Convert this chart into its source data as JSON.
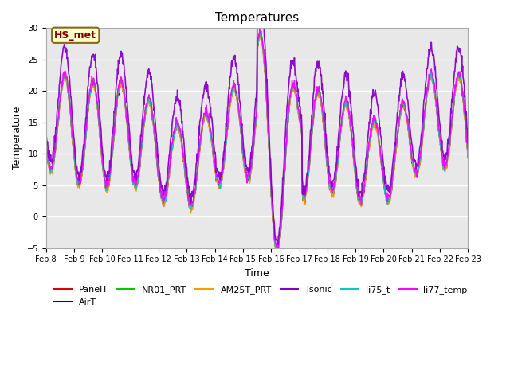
{
  "title": "Temperatures",
  "xlabel": "Time",
  "ylabel": "Temperature",
  "ylim": [
    -5,
    30
  ],
  "fig_bg_color": "#ffffff",
  "plot_bg_color": "#e8e8e8",
  "annotation_text": "HS_met",
  "annotation_box_color": "#ffffcc",
  "annotation_box_edge": "#8B6914",
  "annotation_text_color": "#8B0000",
  "series_order": [
    "PanelT",
    "AirT",
    "NR01_PRT",
    "AM25T_PRT",
    "Tsonic",
    "li75_t",
    "li77_temp"
  ],
  "series": {
    "PanelT": {
      "color": "#dd0000",
      "lw": 1.0
    },
    "AirT": {
      "color": "#0000cc",
      "lw": 1.0
    },
    "NR01_PRT": {
      "color": "#00cc00",
      "lw": 1.0
    },
    "AM25T_PRT": {
      "color": "#ff9900",
      "lw": 1.0
    },
    "Tsonic": {
      "color": "#8800cc",
      "lw": 1.2
    },
    "li75_t": {
      "color": "#00cccc",
      "lw": 1.0
    },
    "li77_temp": {
      "color": "#ff00ff",
      "lw": 1.0
    }
  },
  "yticks": [
    -5,
    0,
    5,
    10,
    15,
    20,
    25,
    30
  ],
  "xtick_labels": [
    "Feb 8",
    "Feb 9",
    "Feb 10",
    "Feb 11",
    "Feb 12",
    "Feb 13",
    "Feb 14",
    "Feb 15",
    "Feb 16",
    "Feb 17",
    "Feb 18",
    "Feb 19",
    "Feb 20",
    "Feb 21",
    "Feb 22",
    "Feb 23"
  ],
  "xtick_positions": [
    0,
    1,
    2,
    3,
    4,
    5,
    6,
    7,
    8,
    9,
    10,
    11,
    12,
    13,
    14,
    15
  ],
  "grid_color": "#ffffff",
  "grid_lw": 1.0,
  "tick_fontsize": 7,
  "label_fontsize": 9,
  "title_fontsize": 11,
  "legend_fontsize": 8
}
